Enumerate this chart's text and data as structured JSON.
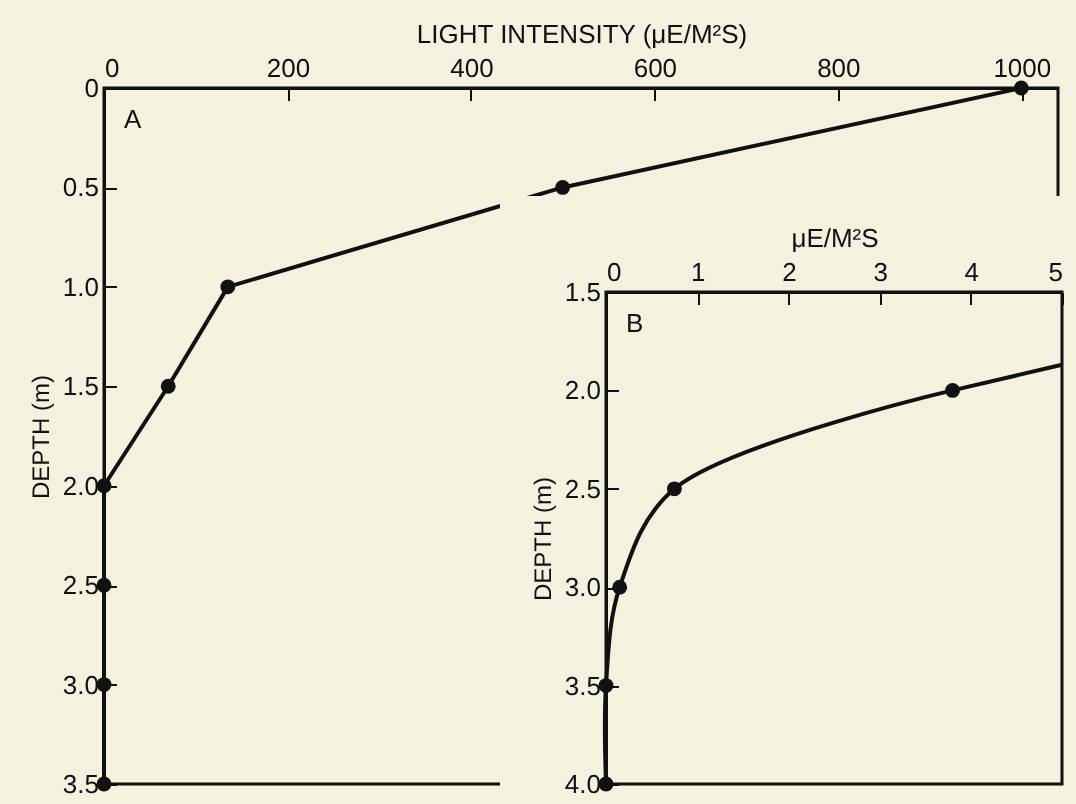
{
  "chart_data": [
    {
      "type": "line",
      "xlabel": "LIGHT INTENSITY (μE/M²S)",
      "ylabel": "DEPTH (m)",
      "annotations": [
        "A"
      ],
      "xlim": [
        0,
        1040
      ],
      "xticks": [
        0,
        200,
        400,
        600,
        800,
        1000
      ],
      "ylim": [
        3.5,
        0
      ],
      "yticks": [
        0,
        0.5,
        {
          "value": 1,
          "label": "1.0"
        },
        1.5,
        {
          "value": 2,
          "label": "2.0"
        },
        2.5,
        {
          "value": 3,
          "label": "3.0"
        },
        3.5
      ],
      "marker": "circle",
      "grid": false,
      "series": [
        {
          "color": "#111111",
          "x": [
            1000,
            500,
            135,
            70,
            0,
            0,
            0,
            0
          ],
          "values": [
            0,
            0.5,
            1.0,
            1.5,
            2.0,
            2.5,
            3.0,
            3.5
          ]
        }
      ]
    },
    {
      "type": "line",
      "xlabel": "μE/M²S",
      "ylabel": "DEPTH (m)",
      "annotations": [
        "B"
      ],
      "xlim": [
        0,
        5
      ],
      "xticks": [
        0,
        1,
        2,
        3,
        4,
        5
      ],
      "ylim": [
        4,
        1.5
      ],
      "yticks": [
        1.5,
        {
          "value": 2,
          "label": "2.0"
        },
        2.5,
        {
          "value": 3,
          "label": "3.0"
        },
        3.5,
        {
          "value": 4,
          "label": "4.0"
        }
      ],
      "marker": "circle",
      "grid": false,
      "series": [
        {
          "color": "#111111",
          "x": [
            3.8,
            0.75,
            0.15,
            0,
            0
          ],
          "values": [
            2.0,
            2.5,
            3.0,
            3.5,
            4.0
          ]
        },
        {
          "color": "#111111",
          "marker": "none",
          "x": [
            5,
            3.8
          ],
          "values": [
            1.87,
            2.0
          ]
        }
      ]
    }
  ]
}
